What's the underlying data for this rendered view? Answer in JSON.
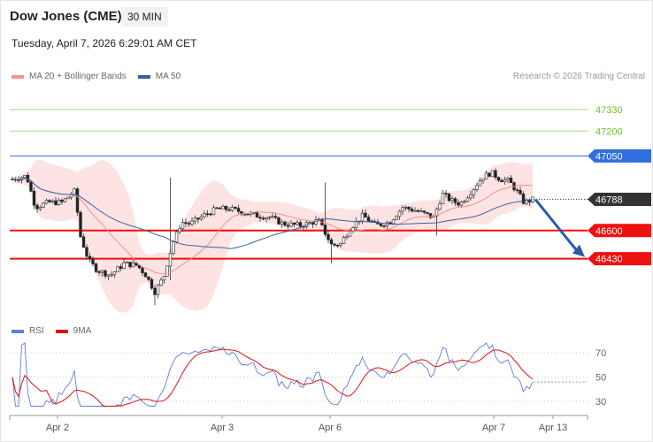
{
  "header": {
    "title": "Dow Jones (CME)",
    "timeframe": "30 MIN",
    "datetime": "Tuesday, April 7, 2026 6:29:01 AM CET",
    "credit": "Research © 2026 Trading Central"
  },
  "legend": {
    "main": [
      {
        "label": "MA 20 + Bollinger Bands",
        "color": "#f4908a"
      },
      {
        "label": "MA 50",
        "color": "#3a5f9e"
      }
    ],
    "rsi": [
      {
        "label": "RSI",
        "color": "#5b7fd9"
      },
      {
        "label": "9MA",
        "color": "#e01010"
      }
    ]
  },
  "chart_data": {
    "type": "candlestick",
    "ylim": [
      46060,
      47500
    ],
    "x_tick_labels": [
      "Apr 2",
      "Apr 3",
      "Apr 6",
      "Apr 7",
      "Apr 13"
    ],
    "last_price": 46788,
    "levels": [
      {
        "value": 47330,
        "label": "47330",
        "kind": "target",
        "color": "#6bbf2d"
      },
      {
        "value": 47200,
        "label": "47200",
        "kind": "target",
        "color": "#6bbf2d"
      },
      {
        "value": 47050,
        "label": "47050",
        "kind": "resistance",
        "color": "#2f6fe0"
      },
      {
        "value": 46788,
        "label": "46788",
        "kind": "last",
        "color": "#333333"
      },
      {
        "value": 46600,
        "label": "46600",
        "kind": "support",
        "color": "#ee1111"
      },
      {
        "value": 46430,
        "label": "46430",
        "kind": "support",
        "color": "#ee1111"
      }
    ],
    "forecast_arrow": {
      "from": 46788,
      "to": 46430,
      "color": "#2a5ca8"
    },
    "rsi": {
      "ylim": [
        22,
        78
      ],
      "ticks": [
        70,
        50,
        30
      ],
      "tick_labels": [
        "70",
        "50",
        "30"
      ]
    },
    "colors": {
      "up": "#2f8a2a",
      "down": "#c81e1e",
      "band_fill": "#fde0e0"
    }
  }
}
